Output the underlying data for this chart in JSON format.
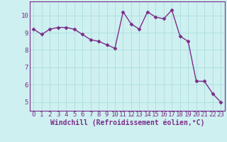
{
  "x": [
    0,
    1,
    2,
    3,
    4,
    5,
    6,
    7,
    8,
    9,
    10,
    11,
    12,
    13,
    14,
    15,
    16,
    17,
    18,
    19,
    20,
    21,
    22,
    23
  ],
  "y": [
    9.2,
    8.9,
    9.2,
    9.3,
    9.3,
    9.2,
    8.9,
    8.6,
    8.5,
    8.3,
    8.1,
    10.2,
    9.5,
    9.2,
    10.2,
    9.9,
    9.8,
    10.3,
    8.8,
    8.5,
    6.2,
    6.2,
    5.5,
    5.0
  ],
  "line_color": "#7b2d8b",
  "marker": "D",
  "marker_size": 2.5,
  "bg_color": "#cff0f0",
  "grid_color": "#aadddd",
  "xlabel": "Windchill (Refroidissement éolien,°C)",
  "xlabel_color": "#7b2d8b",
  "tick_color": "#7b2d8b",
  "ylim": [
    4.5,
    10.8
  ],
  "xlim": [
    -0.5,
    23.5
  ],
  "yticks": [
    5,
    6,
    7,
    8,
    9,
    10
  ],
  "xticks": [
    0,
    1,
    2,
    3,
    4,
    5,
    6,
    7,
    8,
    9,
    10,
    11,
    12,
    13,
    14,
    15,
    16,
    17,
    18,
    19,
    20,
    21,
    22,
    23
  ],
  "xtick_labels": [
    "0",
    "1",
    "2",
    "3",
    "4",
    "5",
    "6",
    "7",
    "8",
    "9",
    "10",
    "11",
    "12",
    "13",
    "14",
    "15",
    "16",
    "17",
    "18",
    "19",
    "20",
    "21",
    "22",
    "23"
  ],
  "ytick_labels": [
    "5",
    "6",
    "7",
    "8",
    "9",
    "10"
  ],
  "spine_color": "#7b2d8b",
  "axis_bg": "#cff0f0",
  "xlabel_fontsize": 7,
  "tick_fontsize": 6.5,
  "line_width": 1.0,
  "marker_color": "#7b2d8b"
}
